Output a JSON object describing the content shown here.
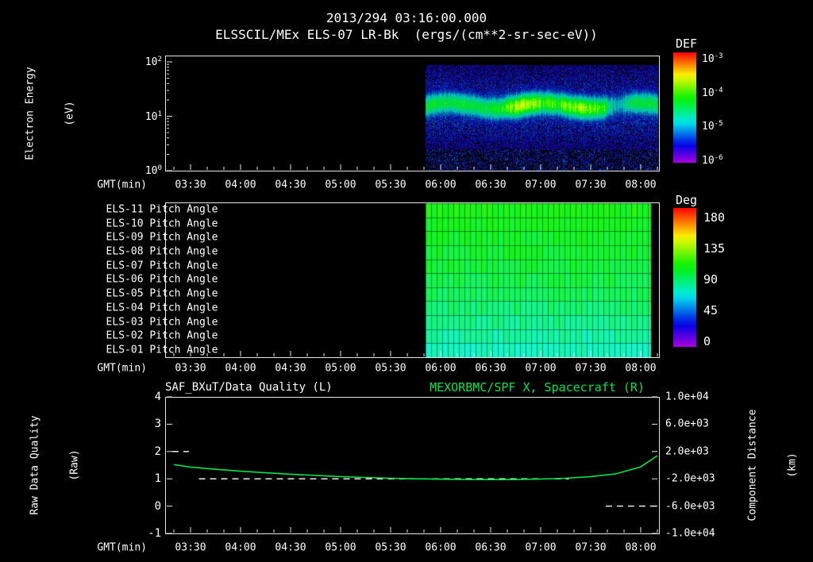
{
  "colors": {
    "background": "#000000",
    "foreground": "#ffffff",
    "accent_green": "#00e44a"
  },
  "header": {
    "timestamp": "2013/294 03:16:00.000",
    "instrument_title": "ELSSCIL/MEx ELS-07 LR-Bk  (ergs/(cm**2-sr-sec-eV))"
  },
  "labels": {
    "energy_line1": "Electron Energy",
    "energy_line2": "(eV)",
    "quality_line1": "Raw Data Quality",
    "quality_line2": "(Raw)",
    "distance_line1": "Component Distance",
    "distance_line2": "(km)"
  },
  "time_axis": {
    "label": "GMT(min)",
    "start": "03:15",
    "end": "08:11",
    "ticks": [
      {
        "label": "03:30",
        "min": 210
      },
      {
        "label": "04:00",
        "min": 240
      },
      {
        "label": "04:30",
        "min": 270
      },
      {
        "label": "05:00",
        "min": 300
      },
      {
        "label": "05:30",
        "min": 330
      },
      {
        "label": "06:00",
        "min": 360
      },
      {
        "label": "06:30",
        "min": 390
      },
      {
        "label": "07:00",
        "min": 420
      },
      {
        "label": "07:30",
        "min": 450
      },
      {
        "label": "08:00",
        "min": 480
      }
    ]
  },
  "chart_data": [
    {
      "type": "heatmap",
      "panel": "electron-energy-spectrogram",
      "title": "ELSSCIL/MEx ELS-07 LR-Bk (ergs/(cm**2-sr-sec-eV))",
      "xlabel": "GMT(min)",
      "ylabel": "Electron Energy (eV)",
      "y_scale": "log",
      "y_ticks": [
        "10^2",
        "10^1",
        "10^0"
      ],
      "y_range_ev": [
        1,
        130
      ],
      "colorbar": {
        "title": "DEF",
        "units": "ergs/(cm**2-sr-sec-eV)",
        "ticks": [
          "10^-3",
          "10^-4",
          "10^-5",
          "10^-6"
        ],
        "orientation": "vertical",
        "top_color": "red",
        "bottom_color": "violet"
      },
      "data_start": "05:51",
      "data_end": "08:10",
      "features": {
        "data_start_min": 351,
        "data_end_min": 490,
        "band_center_log10_ev": 1.2,
        "band_center_ev": 16,
        "band_width_ev": [
          8,
          35
        ],
        "band_peak_def": "~1e-4",
        "background_def": "3e-6 to 1e-5",
        "bright_patch_centers_min": [
          410,
          443
        ],
        "bright_patches_gmt": [
          "06:50",
          "07:23"
        ],
        "dim_gap_min": 466,
        "dim_gap_gmt": "07:46",
        "description": "No data before 05:51. Blue/violet noisy background with an intense green-to-yellow electron flux band near 10-35 eV persisting to 08:10; brightest yellow patches around 06:40-07:10 and 07:15-07:40, brief dimming near 07:46."
      }
    },
    {
      "type": "heatmap",
      "panel": "pitch-angles",
      "colorbar": {
        "title": "Deg",
        "ticks": [
          180,
          135,
          90,
          45,
          0
        ],
        "range_deg": [
          0,
          180
        ]
      },
      "data_start": "05:51",
      "data_end": "08:06",
      "data_start_min": 351,
      "data_end_min": 486,
      "rows": [
        {
          "label": "ELS-11 Pitch Angle",
          "pitch_deg": 104
        },
        {
          "label": "ELS-10 Pitch Angle",
          "pitch_deg": 102
        },
        {
          "label": "ELS-09 Pitch Angle",
          "pitch_deg": 100
        },
        {
          "label": "ELS-08 Pitch Angle",
          "pitch_deg": 99
        },
        {
          "label": "ELS-07 Pitch Angle",
          "pitch_deg": 97
        },
        {
          "label": "ELS-06 Pitch Angle",
          "pitch_deg": 95
        },
        {
          "label": "ELS-05 Pitch Angle",
          "pitch_deg": 92
        },
        {
          "label": "ELS-04 Pitch Angle",
          "pitch_deg": 88
        },
        {
          "label": "ELS-03 Pitch Angle",
          "pitch_deg": 84
        },
        {
          "label": "ELS-02 Pitch Angle",
          "pitch_deg": 80
        },
        {
          "label": "ELS-01 Pitch Angle",
          "pitch_deg": 76
        }
      ],
      "description": "All eleven anodes show near-perpendicular pitch angles (~75-105 deg): green in upper rows grading to cyan in lower rows, rendered as a fine cell grid from 05:51 to 08:06."
    },
    {
      "type": "line",
      "panel": "quality-and-distance",
      "title_left": "SAF_BXuT/Data Quality (L)",
      "title_right": "MEXORBMC/SPF X, Spacecraft (R)",
      "xlabel": "GMT(min)",
      "y_left": {
        "label": "Raw Data Quality (Raw)",
        "range": [
          -1,
          4
        ],
        "ticks": [
          4,
          3,
          2,
          1,
          0,
          -1
        ]
      },
      "y_right": {
        "label": "Component Distance (km)",
        "range": [
          -10000,
          10000
        ],
        "ticks": [
          "1.0e+04",
          "6.0e+03",
          "2.0e+03",
          "-2.0e+03",
          "-6.0e+03",
          "-1.0e+04"
        ]
      },
      "series": [
        {
          "name": "MEXORBMC/SPF X, Spacecraft",
          "axis": "right",
          "style": "solid",
          "color": "green",
          "x_gmt": [
            "03:20",
            "03:30",
            "03:45",
            "04:00",
            "04:15",
            "04:30",
            "04:45",
            "05:00",
            "05:15",
            "05:30",
            "05:45",
            "06:00",
            "06:15",
            "06:30",
            "06:45",
            "07:00",
            "07:15",
            "07:30",
            "07:45",
            "08:00",
            "08:10"
          ],
          "x_min": [
            200,
            210,
            225,
            240,
            255,
            270,
            285,
            300,
            315,
            330,
            345,
            360,
            375,
            390,
            405,
            420,
            435,
            450,
            465,
            480,
            490
          ],
          "km": [
            80,
            -280,
            -600,
            -880,
            -1120,
            -1320,
            -1500,
            -1680,
            -1800,
            -1920,
            -2000,
            -2060,
            -2100,
            -2120,
            -2100,
            -2040,
            -1920,
            -1680,
            -1280,
            -240,
            1400
          ]
        },
        {
          "name": "SAF_BXuT Data Quality",
          "axis": "left",
          "style": "dashed",
          "color": "white",
          "segments": [
            {
              "value": 2,
              "from": "03:19",
              "to": "03:29",
              "from_min": 199,
              "to_min": 209
            },
            {
              "value": 1,
              "from": "03:35",
              "to": "07:17",
              "from_min": 215,
              "to_min": 437
            },
            {
              "value": 0,
              "from": "07:39",
              "to": "08:10",
              "from_min": 459,
              "to_min": 490
            }
          ]
        }
      ]
    }
  ]
}
